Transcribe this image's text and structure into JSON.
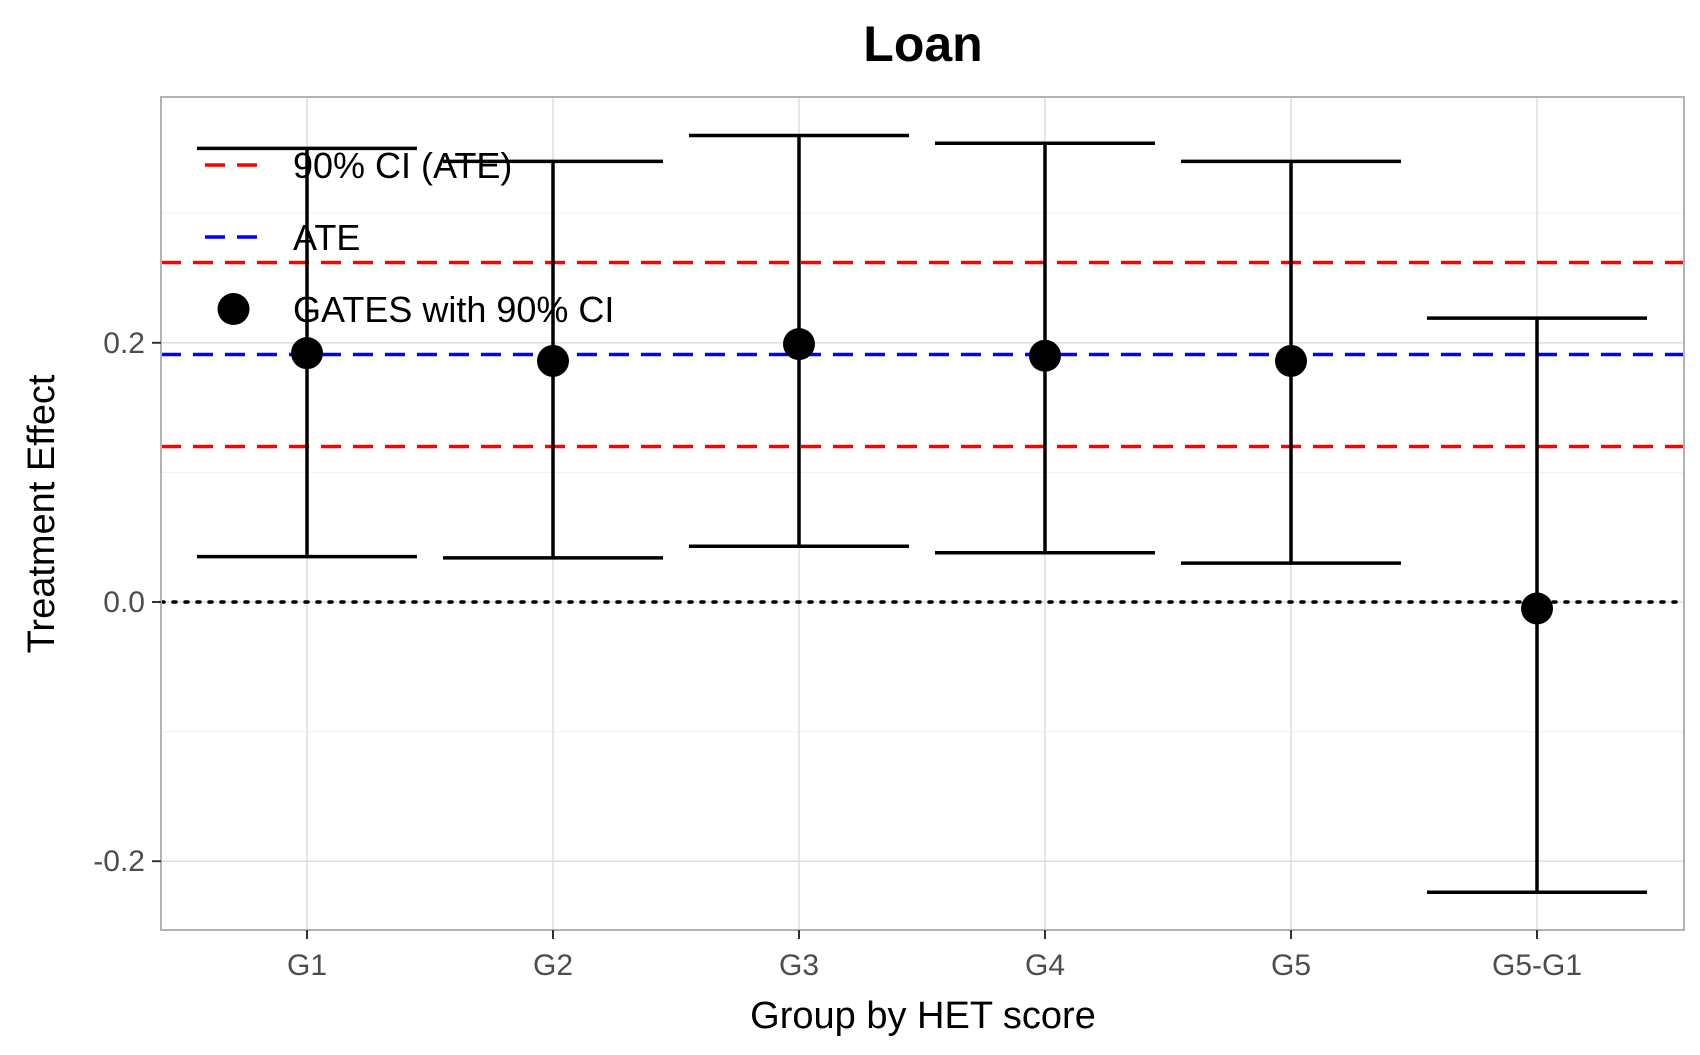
{
  "chart_data": {
    "type": "scatter",
    "title": "Loan",
    "xlabel": "Group by HET score",
    "ylabel": "Treatment Effect",
    "categories": [
      "G1",
      "G2",
      "G3",
      "G4",
      "G5",
      "G5-G1"
    ],
    "ylim": [
      -0.25,
      0.39
    ],
    "yticks": [
      -0.2,
      0.0,
      0.2
    ],
    "ytick_labels": [
      "-0.2",
      "0.0",
      "0.2"
    ],
    "grid": true,
    "series": [
      {
        "name": "GATES with 90% CI",
        "values": [
          0.192,
          0.186,
          0.199,
          0.19,
          0.186,
          -0.005
        ],
        "ci_lower": [
          0.035,
          0.034,
          0.043,
          0.038,
          0.03,
          -0.224
        ],
        "ci_upper": [
          0.35,
          0.34,
          0.36,
          0.354,
          0.34,
          0.219
        ]
      }
    ],
    "ate": 0.191,
    "ate_ci": [
      0.12,
      0.262
    ],
    "zero_line": 0,
    "legend": {
      "position": "top-left",
      "entries": [
        {
          "label": "90% CI (ATE)",
          "style": "dashed",
          "color": "#ff0000"
        },
        {
          "label": "ATE",
          "style": "dashed",
          "color": "#0000ff"
        },
        {
          "label": "GATES with 90% CI",
          "style": "point",
          "color": "#000000"
        }
      ]
    },
    "colors": {
      "ci_ate": "#ff0000",
      "ate": "#0000ff",
      "points": "#000000",
      "grid": "#ebebeb",
      "panel_border": "#b3b3b3"
    }
  }
}
